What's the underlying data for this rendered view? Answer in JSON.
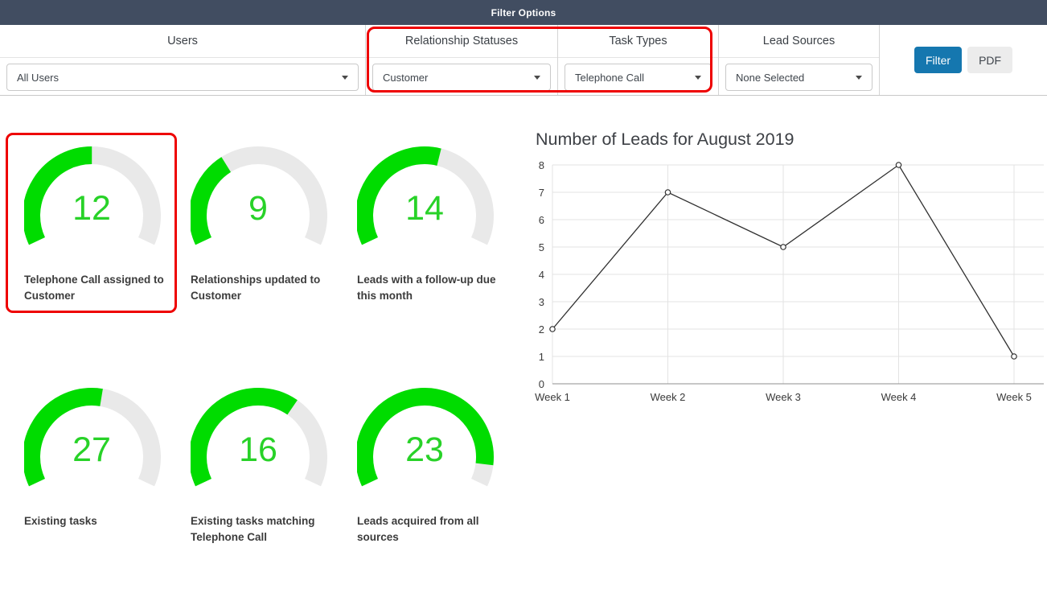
{
  "header": {
    "title": "Filter Options"
  },
  "filters": {
    "columns": [
      {
        "label": "Users",
        "value": "All Users"
      },
      {
        "label": "Relationship Statuses",
        "value": "Customer",
        "highlighted": true
      },
      {
        "label": "Task Types",
        "value": "Telephone Call",
        "highlighted": true
      },
      {
        "label": "Lead Sources",
        "value": "None Selected"
      }
    ],
    "filter_button": "Filter",
    "pdf_button": "PDF"
  },
  "gauges": [
    {
      "value": "12",
      "fraction": 0.5,
      "label": "Telephone Call assigned to Customer",
      "highlighted": true
    },
    {
      "value": "9",
      "fraction": 0.36,
      "label": "Relationships updated to Customer"
    },
    {
      "value": "14",
      "fraction": 0.56,
      "label": "Leads with a follow-up due this month"
    },
    {
      "value": "27",
      "fraction": 0.54,
      "label": "Existing tasks"
    },
    {
      "value": "16",
      "fraction": 0.65,
      "label": "Existing tasks matching Telephone Call"
    },
    {
      "value": "23",
      "fraction": 0.92,
      "label": "Leads acquired from all sources"
    }
  ],
  "chart_data": {
    "type": "line",
    "title": "Number of Leads for August 2019",
    "x": [
      "Week 1",
      "Week 2",
      "Week 3",
      "Week 4",
      "Week 5"
    ],
    "series": [
      {
        "name": "Leads",
        "values": [
          2,
          7,
          5,
          8,
          1
        ]
      }
    ],
    "ylim": [
      0,
      8
    ],
    "yticks": [
      0,
      1,
      2,
      3,
      4,
      5,
      6,
      7,
      8
    ],
    "grid": true,
    "legend": false,
    "marker": "open-circle"
  },
  "colors": {
    "header_bg": "#414d61",
    "accent_blue": "#1577af",
    "annotation_red": "#ee0000",
    "gauge_green": "#00dc00",
    "gauge_number_green": "#28d228",
    "gauge_track": "#e9e9e9",
    "chart_line": "#303030",
    "grid_line": "#e3e3e3",
    "axis_line": "#8f8f8f"
  }
}
